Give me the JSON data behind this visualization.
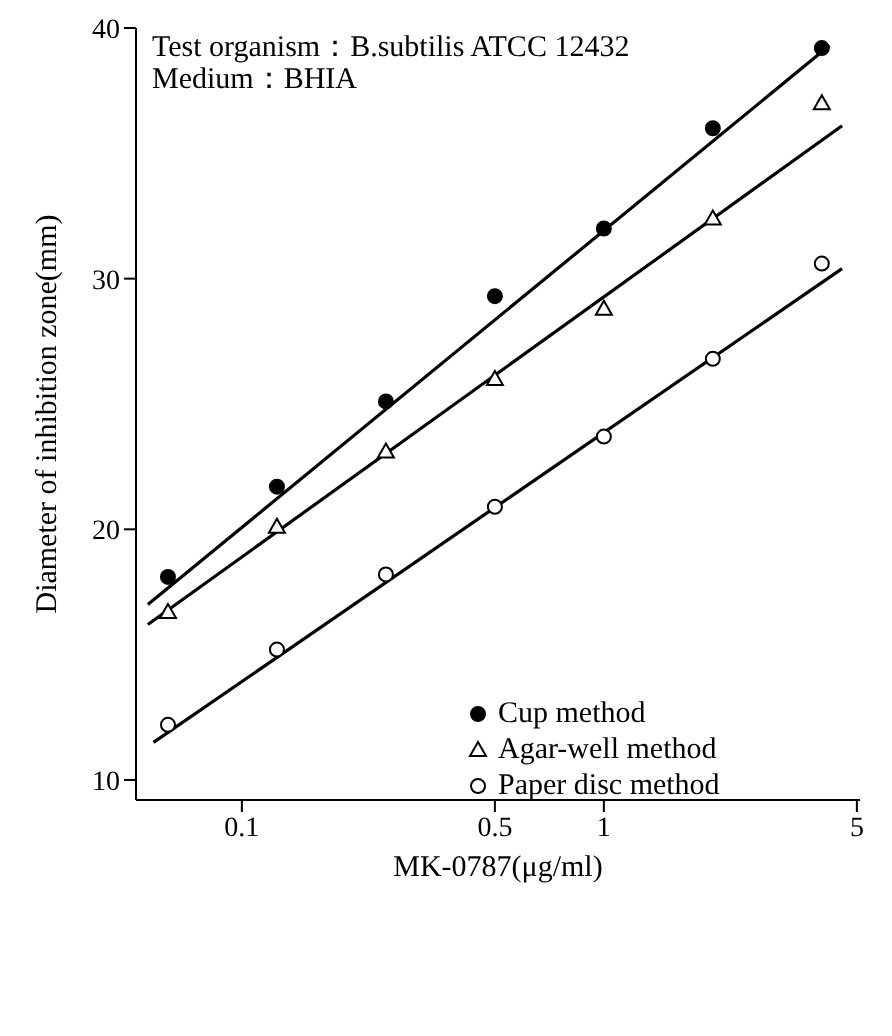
{
  "chart_data": {
    "type": "scatter",
    "xlabel": "MK-0787(μg/ml)",
    "ylabel": "Diameter of inhibition zone(mm)",
    "annotations": [
      "Test organism：B.subtilis ATCC 12432",
      "Medium：BHIA"
    ],
    "x": [
      0.0625,
      0.125,
      0.25,
      0.5,
      1,
      2,
      4
    ],
    "series": [
      {
        "name": "Cup method",
        "color": "#000000",
        "marker": "circle",
        "values": [
          18.1,
          21.7,
          25.1,
          29.3,
          32.0,
          36.0,
          39.2
        ]
      },
      {
        "name": "Agar-well method",
        "color": "#000000",
        "marker": "triangle",
        "values": [
          16.7,
          20.1,
          23.1,
          26.0,
          28.8,
          32.4,
          37.0
        ]
      },
      {
        "name": "Paper disc method",
        "color": "#000000",
        "marker": "open circle",
        "values": [
          12.2,
          15.2,
          18.2,
          20.9,
          23.7,
          26.8,
          30.6
        ]
      },
      {
        "type": "line",
        "color": "#000000",
        "x": [
          0.055,
          4.2
        ],
        "values": [
          17.0,
          39.3
        ]
      },
      {
        "type": "line",
        "color": "#000000",
        "x": [
          0.055,
          4.55
        ],
        "values": [
          16.2,
          36.1
        ]
      },
      {
        "type": "line",
        "color": "#000000",
        "x": [
          0.057,
          4.55
        ],
        "values": [
          11.5,
          30.4
        ]
      }
    ],
    "log": "x",
    "xlim": [
      0.051,
      5.1
    ],
    "xticks": [
      0.1,
      0.5,
      1,
      5
    ],
    "ylim": [
      9.2,
      40
    ],
    "yticks": [
      10,
      20,
      30,
      40
    ],
    "grid": false,
    "legend": "bottom right",
    "line_style": "solid"
  }
}
